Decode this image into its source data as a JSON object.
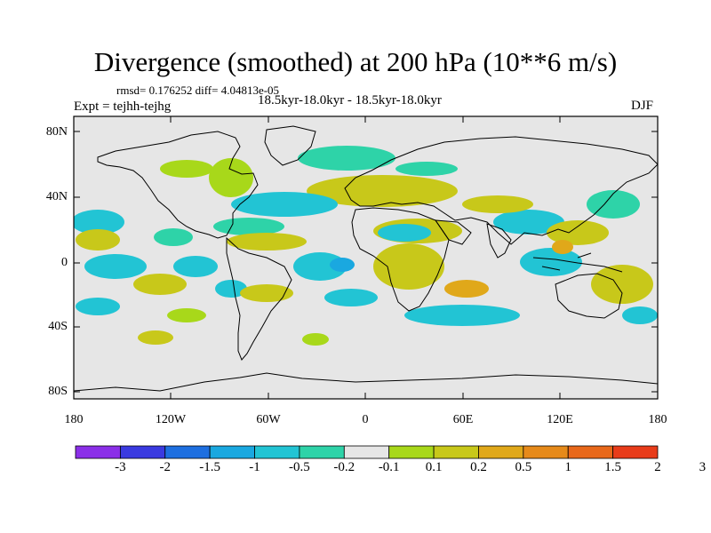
{
  "title": "Divergence (smoothed) at 200 hPa (10**6 m/s)",
  "stats": "rmsd= 0.176252 diff= 4.04813e-05",
  "subtitle": "18.5kyr-18.0kyr - 18.5kyr-18.0kyr",
  "expt": "Expt = tejhh-tejhg",
  "season": "DJF",
  "map": {
    "background_color": "#e6e6e6",
    "lat_ticks": [
      "80N",
      "40N",
      "0",
      "40S",
      "80S"
    ],
    "lon_ticks": [
      "180",
      "120W",
      "60W",
      "0",
      "60E",
      "120E",
      "180"
    ]
  },
  "colorbar": {
    "colors": [
      "#8b2fe8",
      "#3a3ae0",
      "#1e6fe0",
      "#1aa8e0",
      "#22c4d4",
      "#2ed3a8",
      "#e6e6e6",
      "#a8d81a",
      "#c8c81a",
      "#e0a81a",
      "#e68a1a",
      "#e8681a",
      "#e83c1a"
    ],
    "labels": [
      "-3",
      "-2",
      "-1.5",
      "-1",
      "-0.5",
      "-0.2",
      "-0.1",
      "0.1",
      "0.2",
      "0.5",
      "1",
      "1.5",
      "2",
      "3"
    ]
  },
  "palette": {
    "cyan": "#22c4d4",
    "teal": "#2ed3a8",
    "skyblue": "#1aa8e0",
    "lime": "#a8d81a",
    "olive": "#c8c81a",
    "orange": "#e0a81a"
  }
}
